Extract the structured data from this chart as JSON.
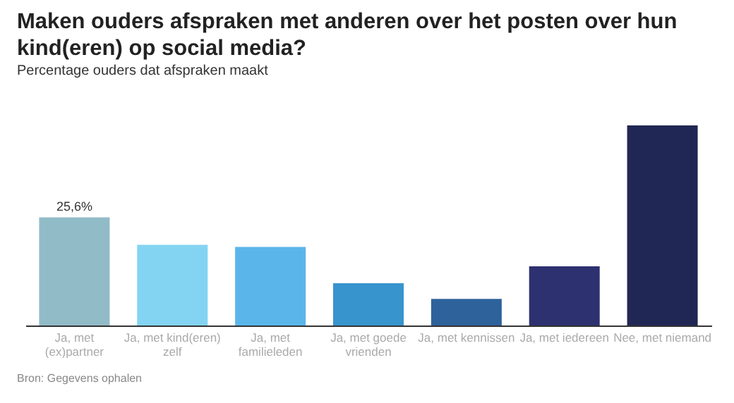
{
  "chart_data": {
    "type": "bar",
    "title": "Maken ouders afspraken met anderen over het posten over hun kind(eren) op social media?",
    "subtitle": "Percentage ouders dat afspraken maakt",
    "categories": [
      "Ja, met (ex)partner",
      "Ja, met kind(eren) zelf",
      "Ja, met familieleden",
      "Ja, met goede vrienden",
      "Ja, met kennissen",
      "Ja, met iedereen",
      "Nee, met niemand"
    ],
    "values": [
      25.6,
      19.1,
      18.6,
      10.0,
      6.3,
      14.0,
      47.4
    ],
    "colors": [
      "#92bbc8",
      "#83d4f2",
      "#5ab6ea",
      "#3894cd",
      "#2e629b",
      "#2d3170",
      "#212754"
    ],
    "value_labels": [
      "25,6%",
      null,
      null,
      null,
      null,
      null,
      null
    ],
    "annotations": [
      "Bron: Gegevens ophalen"
    ]
  }
}
